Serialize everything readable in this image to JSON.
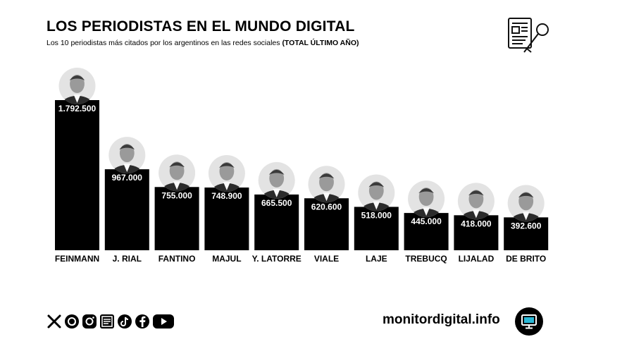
{
  "header": {
    "title": "LOS PERIODISTAS EN EL MUNDO DIGITAL",
    "subtitle": "Los 10 periodistas más citados por los argentinos en las redes sociales",
    "subtitle_bold": "(TOTAL ÚLTIMO AÑO)",
    "icon": "newspaper-microphone-icon"
  },
  "chart_data": {
    "type": "bar",
    "categories": [
      "FEINMANN",
      "J. RIAL",
      "FANTINO",
      "MAJUL",
      "Y. LATORRE",
      "VIALE",
      "LAJE",
      "TREBUCQ",
      "LIJALAD",
      "DE BRITO"
    ],
    "values": [
      1792500,
      967000,
      755000,
      748900,
      665500,
      620600,
      518000,
      445000,
      418000,
      392600
    ],
    "value_labels": [
      "1.792.500",
      "967.000",
      "755.000",
      "748.900",
      "665.500",
      "620.600",
      "518.000",
      "445.000",
      "418.000",
      "392.600"
    ],
    "bar_color": "#000000",
    "label_color": "#ffffff",
    "photo_icon": "portrait-photo-icon",
    "grid": false
  },
  "footer": {
    "social_icons": [
      "x-icon",
      "threads-icon",
      "instagram-icon",
      "news-icon",
      "tiktok-icon",
      "facebook-icon",
      "youtube-icon"
    ],
    "site": "monitordigital.info",
    "logo_icon": "monitor-logo-icon"
  }
}
